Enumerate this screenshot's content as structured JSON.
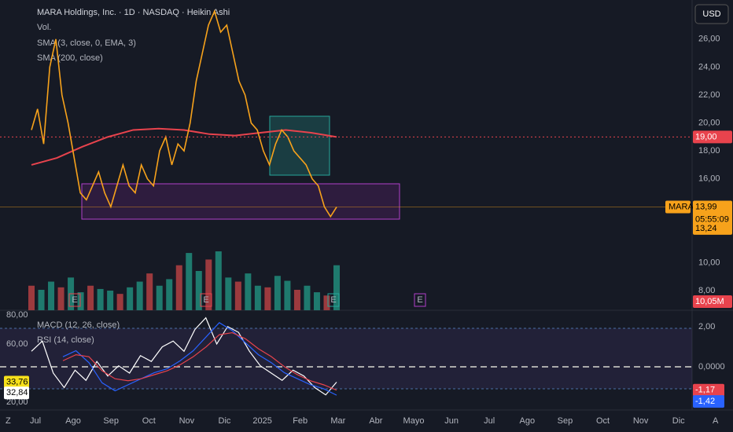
{
  "header": {
    "title": "MARA Holdings, Inc. · 1D · NASDAQ · Heikin Ashi",
    "indicators": [
      "Vol.",
      "SMA (3, close, 0, EMA, 3)",
      "SMA (200, close)"
    ],
    "currency": "USD"
  },
  "price_axis": {
    "ylim": [
      6.6,
      28.8
    ],
    "ticks": [
      {
        "value": 26,
        "label": "26,00"
      },
      {
        "value": 24,
        "label": "24,00"
      },
      {
        "value": 22,
        "label": "22,00"
      },
      {
        "value": 20,
        "label": "20,00"
      },
      {
        "value": 18,
        "label": "18,00"
      },
      {
        "value": 16,
        "label": "16,00"
      },
      {
        "value": 10,
        "label": "10,00"
      },
      {
        "value": 8,
        "label": "8,00"
      }
    ]
  },
  "tags": {
    "sma200": {
      "value": 19,
      "label": "19,00"
    },
    "symbol": "MARA",
    "last": {
      "value": 13.99,
      "label": "13,99"
    },
    "countdown": "05:55:09",
    "low": {
      "value": 13.24,
      "label": "13,24"
    },
    "volume": {
      "value": 10050000,
      "label": "10,05M"
    }
  },
  "price": {
    "color": "#f7a21b",
    "sma_color": "#e8434d",
    "close": [
      19.5,
      21,
      18.5,
      24,
      26,
      22,
      20,
      17.5,
      15,
      14.5,
      15.5,
      16.5,
      15,
      14,
      15.5,
      17,
      15.5,
      15,
      17,
      16,
      15.5,
      18,
      19,
      17,
      18.5,
      18,
      20,
      23,
      25,
      27,
      28,
      26.5,
      27,
      25,
      23,
      22,
      20,
      19.5,
      18,
      17,
      18.5,
      19.5,
      19,
      18,
      17.5,
      17,
      16,
      15.5,
      14,
      13.3,
      13.99
    ],
    "sma200": [
      17,
      17.5,
      18.3,
      19,
      19.5,
      19.6,
      19.5,
      19.2,
      19.1,
      19.3,
      19.5,
      19.3,
      19
    ]
  },
  "volume": [
    30,
    25,
    35,
    28,
    40,
    22,
    30,
    26,
    24,
    20,
    28,
    35,
    45,
    30,
    38,
    55,
    70,
    48,
    62,
    72,
    40,
    35,
    45,
    30,
    28,
    42,
    36,
    25,
    30,
    22,
    18,
    55
  ],
  "earnings": [
    "E",
    "E",
    "E",
    "E"
  ],
  "lower_pane": {
    "indicators": [
      "MACD (12, 26, close)",
      "RSI (14, close)"
    ],
    "rsi_axis": {
      "ylim": [
        14.6,
        83.2
      ],
      "ticks": [
        {
          "value": 80,
          "label": "80,00"
        },
        {
          "value": 60,
          "label": "60,00"
        },
        {
          "value": 20,
          "label": "20,00"
        }
      ]
    },
    "rsi_tags": [
      {
        "value": 33.76,
        "label": "33,76"
      },
      {
        "value": 32.84,
        "label": "32,84"
      }
    ],
    "macd_axis": {
      "ylim": [
        -2.16,
        2.82
      ],
      "ticks": [
        {
          "value": 2,
          "label": "2,00"
        },
        {
          "value": 0,
          "label": "0,0000"
        }
      ]
    },
    "macd_tags": [
      {
        "value": -1.17,
        "label": "-1,17"
      },
      {
        "value": -1.42,
        "label": "-1,42"
      }
    ],
    "rsi": [
      55,
      62,
      40,
      30,
      42,
      35,
      48,
      38,
      45,
      40,
      52,
      48,
      58,
      62,
      55,
      70,
      78,
      60,
      72,
      68,
      55,
      45,
      40,
      35,
      42,
      38,
      30,
      25,
      33.76
    ],
    "macd": [
      0.5,
      0.8,
      0.2,
      -0.8,
      -1.2,
      -0.9,
      -0.6,
      -0.3,
      -0.1,
      0.3,
      0.8,
      1.5,
      2.2,
      1.8,
      1.2,
      0.6,
      0.2,
      -0.3,
      -0.6,
      -0.9,
      -1.1,
      -1.42
    ],
    "signal": [
      0.3,
      0.6,
      0.5,
      -0.2,
      -0.6,
      -0.7,
      -0.6,
      -0.4,
      -0.2,
      0.1,
      0.5,
      1.0,
      1.6,
      1.7,
      1.4,
      0.9,
      0.5,
      0.0,
      -0.4,
      -0.7,
      -0.9,
      -1.17
    ]
  },
  "time_axis": {
    "labels": [
      "Jul",
      "Ago",
      "Sep",
      "Oct",
      "Nov",
      "Dic",
      "2025",
      "Feb",
      "Mar",
      "Abr",
      "Mayo",
      "Jun",
      "Jul",
      "Ago",
      "Sep",
      "Oct",
      "Nov",
      "Dic"
    ],
    "left_button": "Z",
    "right_button": "A"
  }
}
